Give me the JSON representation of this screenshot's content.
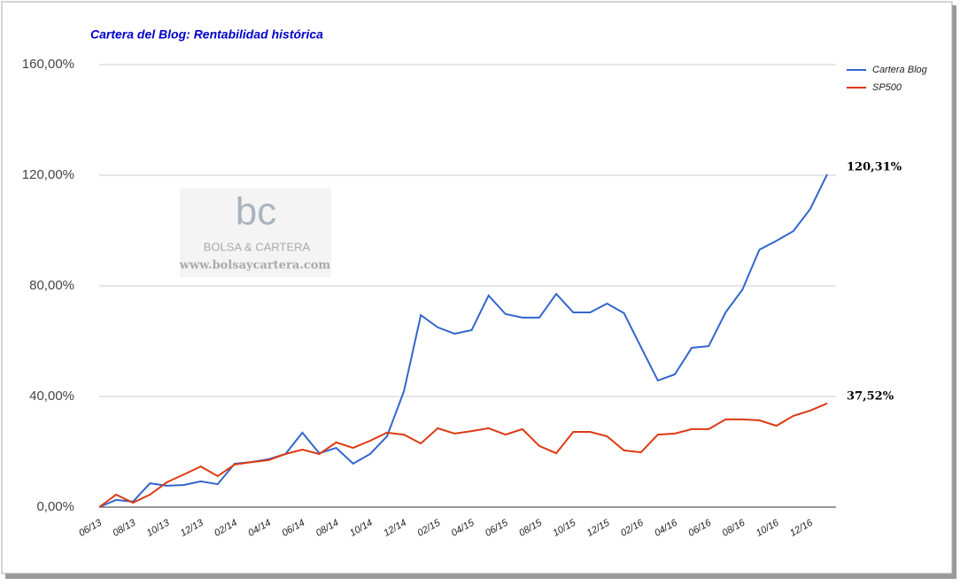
{
  "chart_data": {
    "type": "line",
    "title": "Cartera del Blog: Rentabilidad histórica",
    "watermark": {
      "logo": "bc",
      "name": "BOLSA & CARTERA",
      "url": "www.bolsaycartera.com"
    },
    "categories": [
      "06/13",
      null,
      "08/13",
      null,
      "10/13",
      null,
      "12/13",
      null,
      "02/14",
      null,
      "04/14",
      null,
      "06/14",
      null,
      "08/14",
      null,
      "10/14",
      null,
      "12/14",
      null,
      "02/15",
      null,
      "04/15",
      null,
      "06/15",
      null,
      "08/15",
      null,
      "10/15",
      null,
      "12/15",
      null,
      "02/16",
      null,
      "04/16",
      null,
      "06/16",
      null,
      "08/16",
      null,
      "10/16",
      null,
      "12/16",
      null
    ],
    "series": [
      {
        "name": "Cartera Blog",
        "color": "#3366cc",
        "values": [
          0,
          2.6,
          2,
          8.6,
          7.7,
          8,
          9.3,
          8.3,
          15.7,
          16.3,
          17.3,
          19.2,
          26.9,
          19.5,
          21.4,
          15.7,
          19.2,
          25.6,
          41.9,
          69.4,
          65,
          62.7,
          64,
          76.5,
          69.8,
          68.5,
          68.5,
          77.1,
          70.4,
          70.4,
          73.6,
          70.1,
          57.9,
          45.8,
          48,
          57.6,
          58.2,
          70.4,
          78.7,
          93.1,
          96.3,
          99.8,
          107.8,
          120.31
        ],
        "value_labels": [
          null,
          null,
          null,
          null,
          null,
          null,
          null,
          null,
          null,
          null,
          null,
          null,
          null,
          null,
          null,
          null,
          null,
          null,
          null,
          null,
          null,
          null,
          null,
          null,
          null,
          null,
          null,
          null,
          null,
          null,
          null,
          null,
          null,
          null,
          null,
          null,
          null,
          null,
          null,
          null,
          null,
          null,
          null,
          "120,31%"
        ]
      },
      {
        "name": "SP500",
        "color": "#dc3912",
        "values": [
          0,
          4.5,
          1.6,
          4.5,
          9,
          11.8,
          14.7,
          11.2,
          15.4,
          16.3,
          17,
          19.2,
          20.8,
          19.2,
          23.4,
          21.4,
          24,
          26.9,
          26.2,
          23,
          28.5,
          26.6,
          27.5,
          28.5,
          26.2,
          28.2,
          22.1,
          19.5,
          27.2,
          27.2,
          25.6,
          20.5,
          19.8,
          26.2,
          26.6,
          28.2,
          28.2,
          31.7,
          31.7,
          31.4,
          29.4,
          33,
          34.9,
          37.52
        ],
        "value_labels": [
          null,
          null,
          null,
          null,
          null,
          null,
          null,
          null,
          null,
          null,
          null,
          null,
          null,
          null,
          null,
          null,
          null,
          null,
          null,
          null,
          null,
          null,
          null,
          null,
          null,
          null,
          null,
          null,
          null,
          null,
          null,
          null,
          null,
          null,
          null,
          null,
          null,
          null,
          null,
          null,
          null,
          null,
          null,
          "37,52%"
        ]
      }
    ],
    "ylim": [
      0,
      160
    ],
    "yticks": [
      {
        "value": 0,
        "label": "0,00%"
      },
      {
        "value": 40,
        "label": "40,00%"
      },
      {
        "value": 80,
        "label": "80,00%"
      },
      {
        "value": 120,
        "label": "120,00%"
      },
      {
        "value": 160,
        "label": "160,00%"
      }
    ],
    "grid": true,
    "legend": "right"
  }
}
